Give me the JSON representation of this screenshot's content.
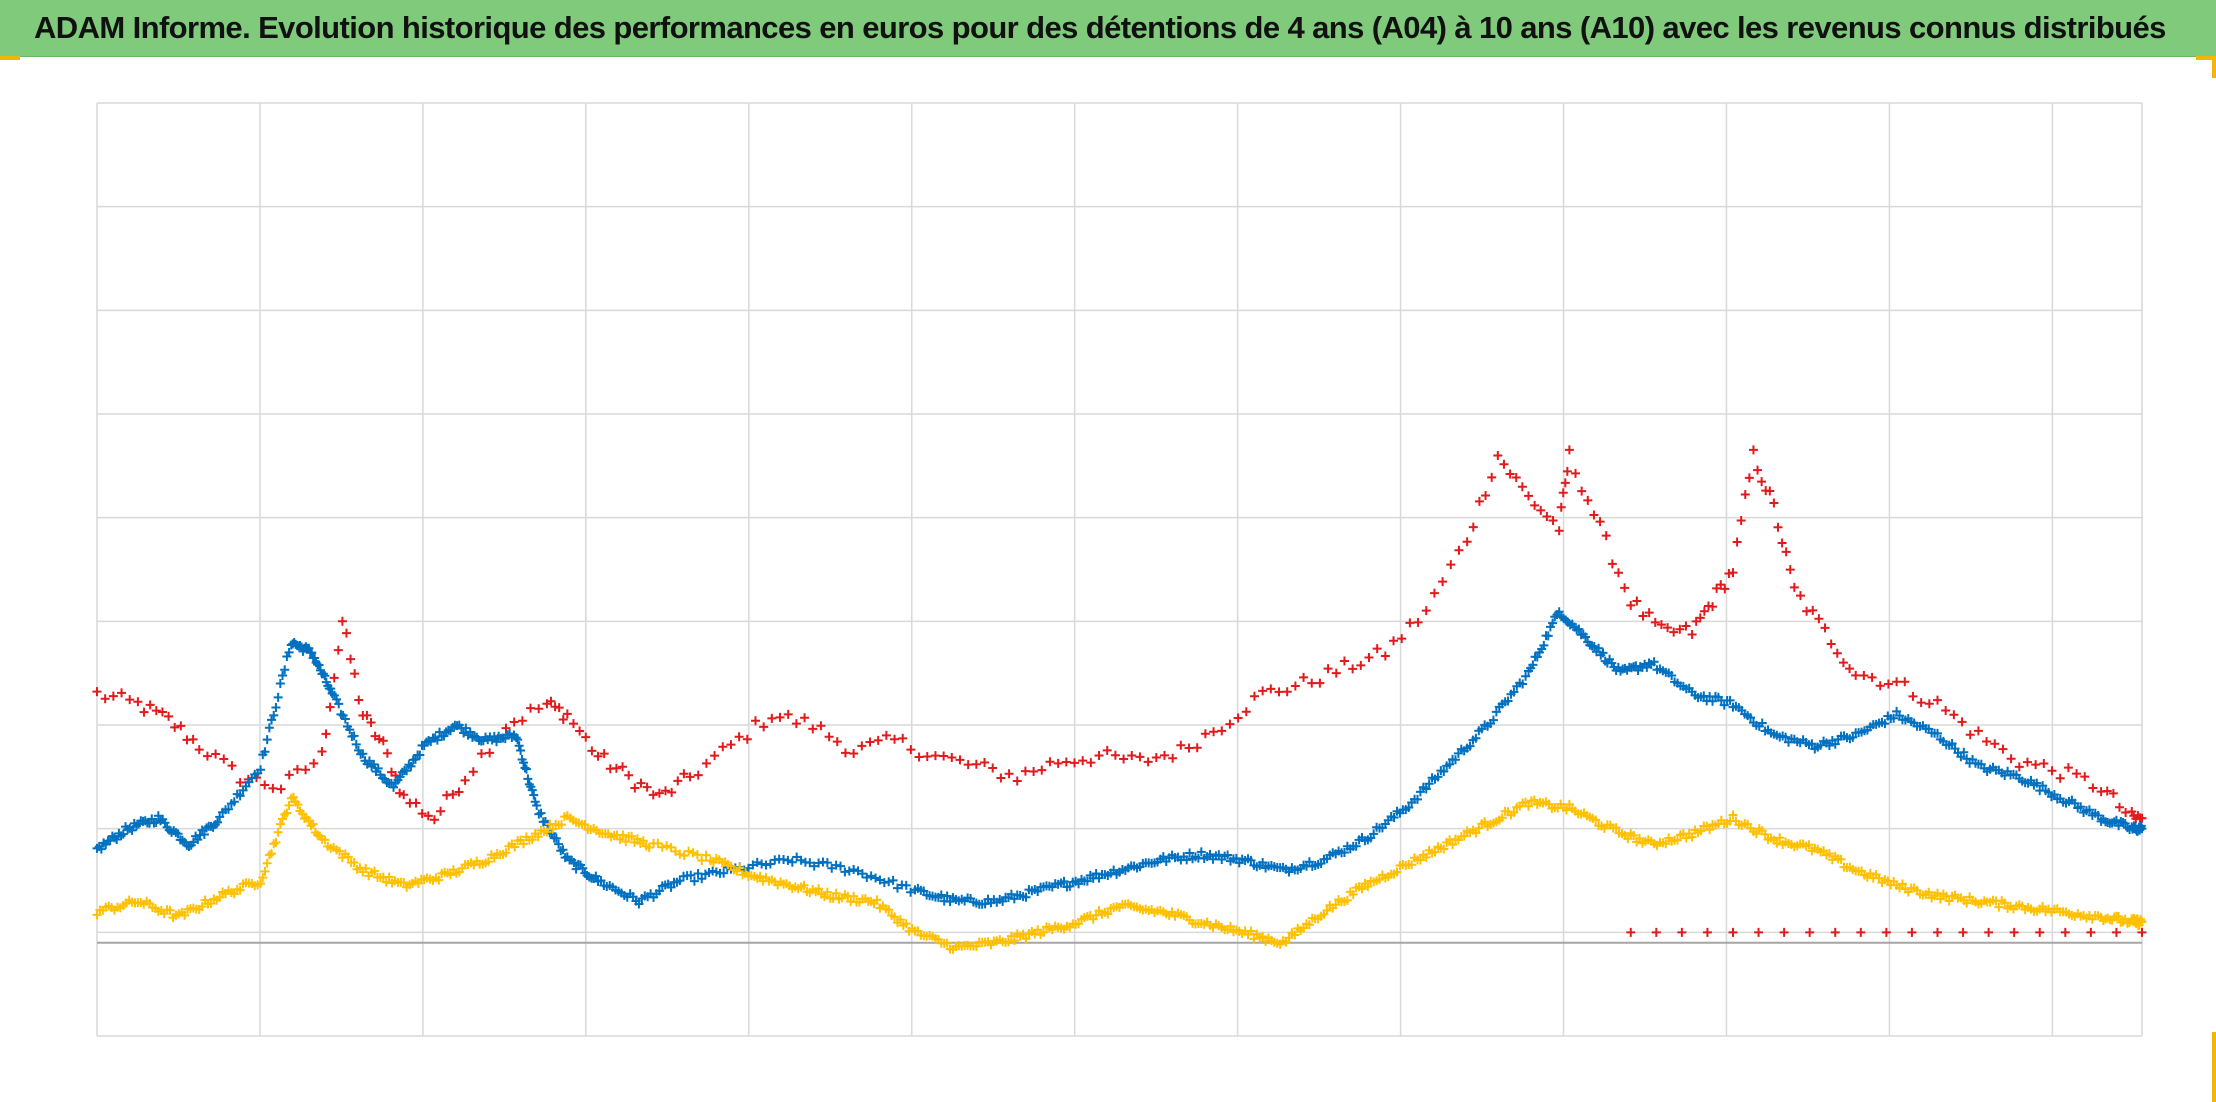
{
  "title": "ADAM Informe. Evolution historique des performances en euros pour des détentions de 4 ans (A04) à 10 ans (A10) avec les revenus connus distribués",
  "colors": {
    "title_bar": "#7fcb7b",
    "grid": "#d9d9d9",
    "zero_line": "#a6a6a6",
    "frame_accent": "#f2b705"
  },
  "chart_data": {
    "type": "scatter",
    "marker": "plus",
    "xlabel": "",
    "ylabel": "",
    "x_gridlines": 13,
    "y_gridlines": 9,
    "xlim": [
      0,
      1000
    ],
    "ylim": [
      -90,
      810
    ],
    "grid": true,
    "legend": "none",
    "series": [
      {
        "color": "#e31a1c",
        "points": [
          [
            0,
            240
          ],
          [
            20,
            230
          ],
          [
            35,
            215
          ],
          [
            50,
            190
          ],
          [
            70,
            160
          ],
          [
            90,
            150
          ],
          [
            110,
            180
          ],
          [
            120,
            310
          ],
          [
            130,
            220
          ],
          [
            140,
            190
          ],
          [
            150,
            140
          ],
          [
            165,
            120
          ],
          [
            180,
            160
          ],
          [
            200,
            210
          ],
          [
            220,
            230
          ],
          [
            230,
            220
          ],
          [
            245,
            180
          ],
          [
            260,
            160
          ],
          [
            275,
            140
          ],
          [
            290,
            160
          ],
          [
            310,
            190
          ],
          [
            330,
            220
          ],
          [
            350,
            210
          ],
          [
            370,
            185
          ],
          [
            390,
            195
          ],
          [
            410,
            180
          ],
          [
            430,
            170
          ],
          [
            450,
            160
          ],
          [
            470,
            175
          ],
          [
            490,
            180
          ],
          [
            510,
            175
          ],
          [
            530,
            185
          ],
          [
            550,
            210
          ],
          [
            570,
            240
          ],
          [
            590,
            250
          ],
          [
            610,
            265
          ],
          [
            630,
            280
          ],
          [
            650,
            320
          ],
          [
            670,
            390
          ],
          [
            685,
            470
          ],
          [
            700,
            430
          ],
          [
            715,
            400
          ],
          [
            720,
            470
          ],
          [
            735,
            400
          ],
          [
            750,
            330
          ],
          [
            765,
            300
          ],
          [
            780,
            300
          ],
          [
            790,
            330
          ],
          [
            800,
            360
          ],
          [
            810,
            470
          ],
          [
            820,
            420
          ],
          [
            830,
            340
          ],
          [
            845,
            300
          ],
          [
            860,
            260
          ],
          [
            880,
            250
          ],
          [
            900,
            230
          ],
          [
            920,
            200
          ],
          [
            940,
            175
          ],
          [
            960,
            165
          ],
          [
            980,
            150
          ],
          [
            995,
            120
          ],
          [
            1000,
            120
          ]
        ]
      },
      {
        "color": "#e31a1c",
        "points": [
          [
            750,
            10
          ],
          [
            800,
            10
          ],
          [
            850,
            10
          ],
          [
            900,
            10
          ],
          [
            950,
            10
          ],
          [
            1000,
            10
          ]
        ]
      },
      {
        "color": "#0070c0",
        "points": [
          [
            0,
            90
          ],
          [
            15,
            110
          ],
          [
            30,
            120
          ],
          [
            45,
            95
          ],
          [
            60,
            120
          ],
          [
            80,
            170
          ],
          [
            95,
            290
          ],
          [
            105,
            280
          ],
          [
            115,
            240
          ],
          [
            130,
            180
          ],
          [
            145,
            150
          ],
          [
            160,
            190
          ],
          [
            175,
            210
          ],
          [
            190,
            195
          ],
          [
            205,
            200
          ],
          [
            215,
            130
          ],
          [
            230,
            80
          ],
          [
            245,
            60
          ],
          [
            265,
            40
          ],
          [
            285,
            60
          ],
          [
            310,
            70
          ],
          [
            340,
            80
          ],
          [
            370,
            70
          ],
          [
            400,
            50
          ],
          [
            420,
            40
          ],
          [
            440,
            40
          ],
          [
            460,
            50
          ],
          [
            480,
            60
          ],
          [
            500,
            70
          ],
          [
            520,
            80
          ],
          [
            540,
            85
          ],
          [
            560,
            80
          ],
          [
            580,
            70
          ],
          [
            600,
            80
          ],
          [
            620,
            100
          ],
          [
            640,
            130
          ],
          [
            660,
            170
          ],
          [
            680,
            210
          ],
          [
            700,
            260
          ],
          [
            715,
            320
          ],
          [
            730,
            290
          ],
          [
            745,
            260
          ],
          [
            760,
            270
          ],
          [
            780,
            240
          ],
          [
            800,
            230
          ],
          [
            820,
            200
          ],
          [
            840,
            190
          ],
          [
            860,
            200
          ],
          [
            880,
            220
          ],
          [
            900,
            200
          ],
          [
            920,
            170
          ],
          [
            940,
            160
          ],
          [
            960,
            140
          ],
          [
            980,
            120
          ],
          [
            995,
            110
          ],
          [
            1000,
            110
          ]
        ]
      },
      {
        "color": "#ffc000",
        "points": [
          [
            0,
            30
          ],
          [
            20,
            40
          ],
          [
            40,
            25
          ],
          [
            60,
            45
          ],
          [
            80,
            60
          ],
          [
            95,
            140
          ],
          [
            110,
            100
          ],
          [
            130,
            70
          ],
          [
            150,
            55
          ],
          [
            170,
            65
          ],
          [
            190,
            80
          ],
          [
            210,
            100
          ],
          [
            230,
            120
          ],
          [
            250,
            105
          ],
          [
            270,
            95
          ],
          [
            300,
            80
          ],
          [
            320,
            65
          ],
          [
            340,
            55
          ],
          [
            360,
            45
          ],
          [
            380,
            40
          ],
          [
            400,
            10
          ],
          [
            420,
            -5
          ],
          [
            440,
            0
          ],
          [
            460,
            10
          ],
          [
            480,
            20
          ],
          [
            500,
            35
          ],
          [
            520,
            30
          ],
          [
            540,
            20
          ],
          [
            560,
            10
          ],
          [
            580,
            0
          ],
          [
            600,
            30
          ],
          [
            620,
            55
          ],
          [
            640,
            75
          ],
          [
            660,
            95
          ],
          [
            680,
            115
          ],
          [
            700,
            135
          ],
          [
            720,
            130
          ],
          [
            740,
            110
          ],
          [
            760,
            95
          ],
          [
            780,
            105
          ],
          [
            800,
            120
          ],
          [
            820,
            100
          ],
          [
            840,
            90
          ],
          [
            860,
            70
          ],
          [
            880,
            55
          ],
          [
            900,
            45
          ],
          [
            920,
            40
          ],
          [
            940,
            35
          ],
          [
            960,
            30
          ],
          [
            980,
            25
          ],
          [
            995,
            20
          ],
          [
            1000,
            20
          ]
        ]
      }
    ]
  }
}
